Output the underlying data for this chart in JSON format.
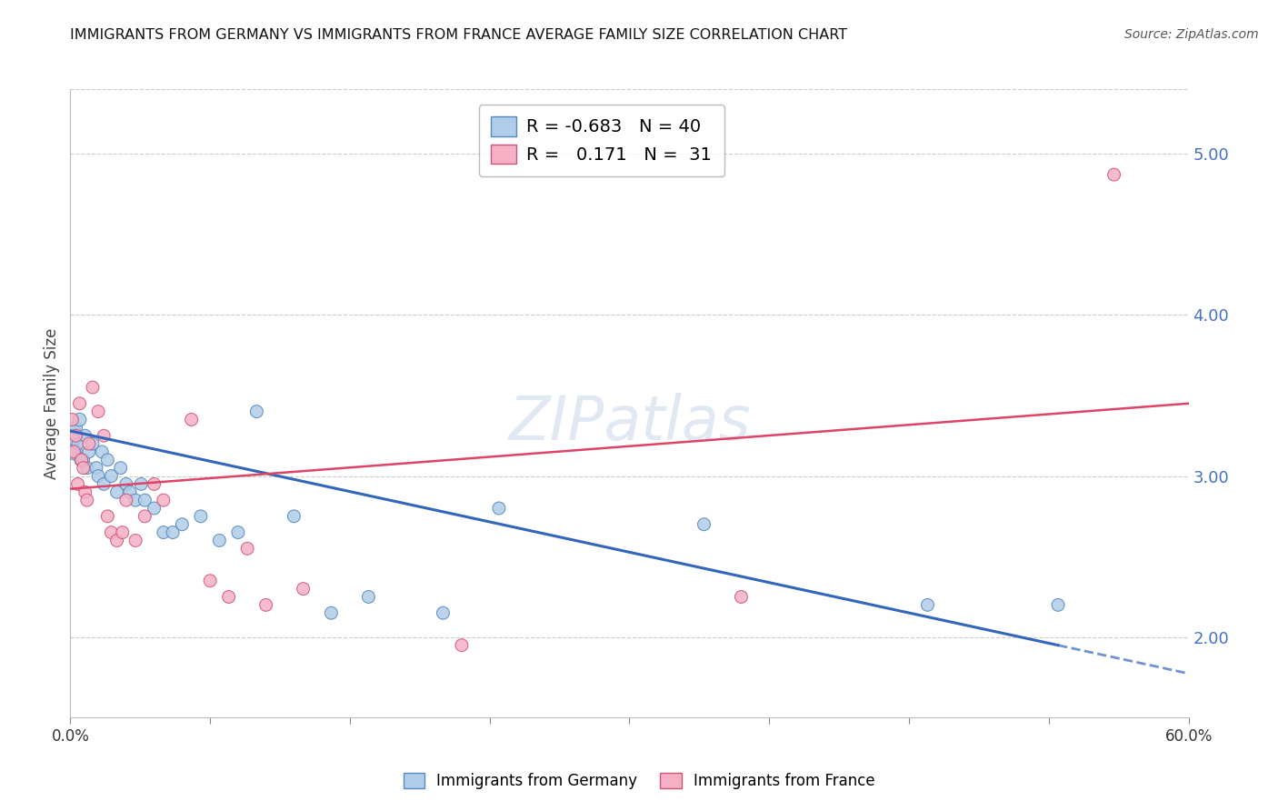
{
  "title": "IMMIGRANTS FROM GERMANY VS IMMIGRANTS FROM FRANCE AVERAGE FAMILY SIZE CORRELATION CHART",
  "source": "Source: ZipAtlas.com",
  "ylabel": "Average Family Size",
  "ylabel_color": "#444444",
  "right_ytick_color": "#4472c4",
  "xmin": 0.0,
  "xmax": 0.6,
  "ymin": 1.5,
  "ymax": 5.4,
  "yticks_right": [
    2.0,
    3.0,
    4.0,
    5.0
  ],
  "xtick_positions": [
    0.0,
    0.075,
    0.15,
    0.225,
    0.3,
    0.375,
    0.45,
    0.525,
    0.6
  ],
  "xtick_labels_show": [
    "0.0%",
    "",
    "",
    "",
    "",
    "",
    "",
    "",
    "60.0%"
  ],
  "germany_color": "#b0cce8",
  "france_color": "#f5b0c5",
  "germany_edge": "#5588bb",
  "france_edge": "#cc5577",
  "trend_germany_color": "#3366bb",
  "trend_france_color": "#dd4466",
  "legend_r_germany": "-0.683",
  "legend_n_germany": "40",
  "legend_r_france": "0.171",
  "legend_n_france": "31",
  "watermark": "ZIPatlas",
  "background_color": "#ffffff",
  "grid_color": "#cccccc",
  "germany_x": [
    0.001,
    0.002,
    0.003,
    0.004,
    0.005,
    0.006,
    0.007,
    0.008,
    0.009,
    0.01,
    0.012,
    0.014,
    0.015,
    0.017,
    0.018,
    0.02,
    0.022,
    0.025,
    0.027,
    0.03,
    0.032,
    0.035,
    0.038,
    0.04,
    0.045,
    0.05,
    0.055,
    0.06,
    0.07,
    0.08,
    0.09,
    0.1,
    0.12,
    0.14,
    0.16,
    0.2,
    0.23,
    0.34,
    0.46,
    0.53
  ],
  "germany_y": [
    3.25,
    3.15,
    3.3,
    3.2,
    3.35,
    3.1,
    3.1,
    3.25,
    3.05,
    3.15,
    3.2,
    3.05,
    3.0,
    3.15,
    2.95,
    3.1,
    3.0,
    2.9,
    3.05,
    2.95,
    2.9,
    2.85,
    2.95,
    2.85,
    2.8,
    2.65,
    2.65,
    2.7,
    2.75,
    2.6,
    2.65,
    3.4,
    2.75,
    2.15,
    2.25,
    2.15,
    2.8,
    2.7,
    2.2,
    2.2
  ],
  "france_x": [
    0.001,
    0.002,
    0.003,
    0.004,
    0.005,
    0.006,
    0.007,
    0.008,
    0.009,
    0.01,
    0.012,
    0.015,
    0.018,
    0.02,
    0.022,
    0.025,
    0.028,
    0.03,
    0.035,
    0.04,
    0.045,
    0.05,
    0.065,
    0.075,
    0.085,
    0.095,
    0.105,
    0.125,
    0.21,
    0.36,
    0.56
  ],
  "france_y": [
    3.35,
    3.15,
    3.25,
    2.95,
    3.45,
    3.1,
    3.05,
    2.9,
    2.85,
    3.2,
    3.55,
    3.4,
    3.25,
    2.75,
    2.65,
    2.6,
    2.65,
    2.85,
    2.6,
    2.75,
    2.95,
    2.85,
    3.35,
    2.35,
    2.25,
    2.55,
    2.2,
    2.3,
    1.95,
    2.25,
    4.87
  ],
  "germany_sizes": [
    280,
    160,
    100,
    90,
    110,
    120,
    100,
    100,
    100,
    100,
    100,
    100,
    100,
    100,
    100,
    100,
    100,
    100,
    100,
    100,
    100,
    100,
    100,
    100,
    100,
    100,
    100,
    100,
    100,
    100,
    100,
    100,
    100,
    100,
    100,
    100,
    100,
    100,
    100,
    100
  ],
  "france_sizes": [
    100,
    100,
    100,
    100,
    100,
    100,
    100,
    100,
    100,
    100,
    100,
    100,
    100,
    100,
    100,
    100,
    100,
    100,
    100,
    100,
    100,
    100,
    100,
    100,
    100,
    100,
    100,
    100,
    100,
    100,
    100
  ]
}
